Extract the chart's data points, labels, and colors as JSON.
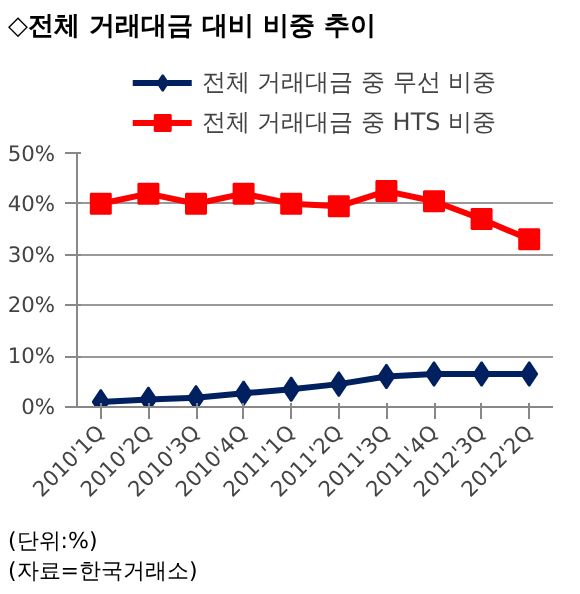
{
  "chart_data": {
    "type": "line",
    "title": "◇전체 거래대금 대비 비중 추이",
    "categories": [
      "2010'1Q",
      "2010'2Q",
      "2010'3Q",
      "2010'4Q",
      "2011'1Q",
      "2011'2Q",
      "2011'3Q",
      "2011'4Q",
      "2012'3Q",
      "2012'2Q"
    ],
    "series": [
      {
        "name": "전체 거래대금 중 무선 비중",
        "color": "#002060",
        "marker": "diamond",
        "values": [
          1,
          1.5,
          1.8,
          2.7,
          3.5,
          4.5,
          6,
          6.5,
          6.5,
          6.5
        ]
      },
      {
        "name": "전체 거래대금 중 HTS 비중",
        "color": "#ff0000",
        "marker": "square",
        "values": [
          40,
          42,
          40,
          42,
          40,
          39.5,
          42.5,
          40.5,
          37,
          33
        ]
      }
    ],
    "ylim": [
      0,
      50
    ],
    "yticks": [
      {
        "value": 0,
        "label": "0%"
      },
      {
        "value": 10,
        "label": "10%"
      },
      {
        "value": 20,
        "label": "20%"
      },
      {
        "value": 30,
        "label": "30%"
      },
      {
        "value": 40,
        "label": "40%"
      },
      {
        "value": 50,
        "label": "50%"
      }
    ],
    "grid": "y",
    "legend": "top",
    "line_style": "solid",
    "annotations": [
      "(단위:%)",
      "(자료=한국거래소)"
    ]
  }
}
